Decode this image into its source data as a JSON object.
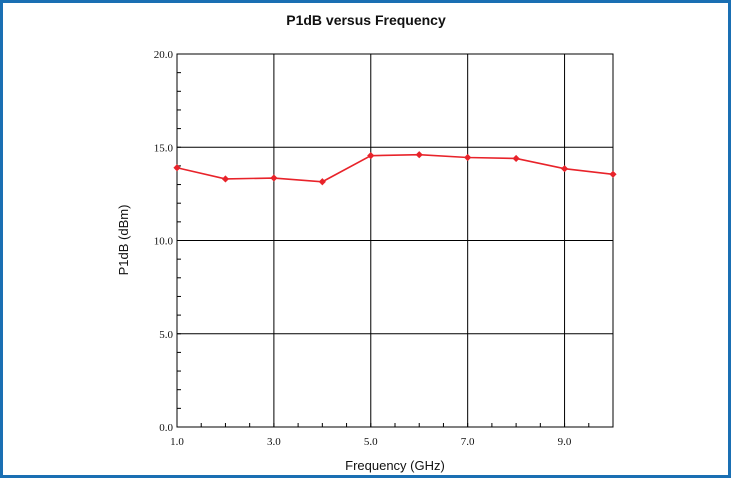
{
  "colors": {
    "frame_border": "#1a6fb3",
    "series": "#e8232a",
    "grid": "#000000"
  },
  "chart_data": {
    "type": "line",
    "title": "P1dB versus Frequency",
    "xlabel": "Frequency (GHz)",
    "ylabel": "P1dB (dBm)",
    "xlim": [
      1.0,
      10.0
    ],
    "ylim": [
      0.0,
      20.0
    ],
    "x_ticks": [
      1.0,
      3.0,
      5.0,
      7.0,
      9.0
    ],
    "x_tick_labels": [
      "1.0",
      "3.0",
      "5.0",
      "7.0",
      "9.0"
    ],
    "y_ticks": [
      0.0,
      5.0,
      10.0,
      15.0,
      20.0
    ],
    "y_tick_labels": [
      "0.0",
      "5.0",
      "10.0",
      "15.0",
      "20.0"
    ],
    "grid": true,
    "series": [
      {
        "x": [
          1,
          2,
          3,
          4,
          5,
          6,
          7,
          8,
          9,
          10
        ],
        "values": [
          13.9,
          13.3,
          13.35,
          13.15,
          14.55,
          14.6,
          14.45,
          14.4,
          13.85,
          13.55
        ],
        "color": "#e8232a",
        "marker": "diamond"
      }
    ]
  }
}
